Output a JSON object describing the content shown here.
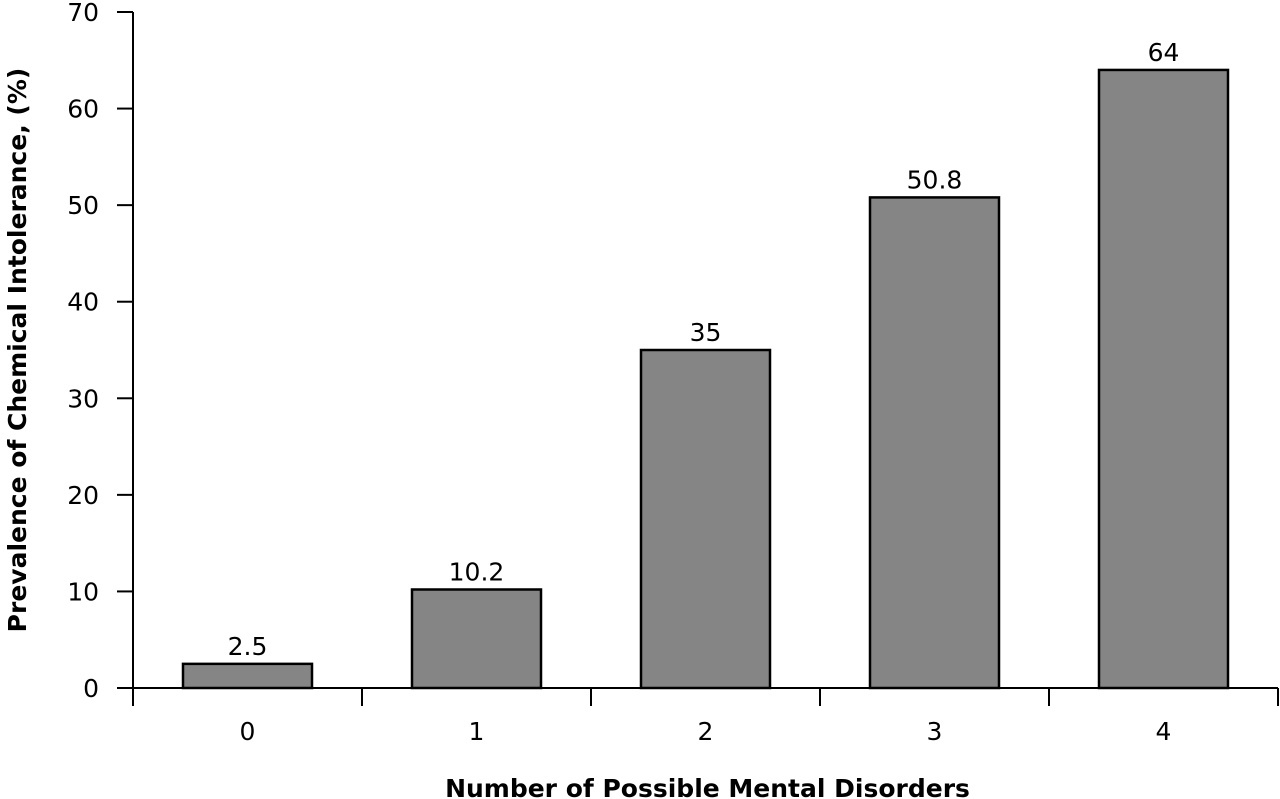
{
  "chart_data": {
    "type": "bar",
    "categories": [
      "0",
      "1",
      "2",
      "3",
      "4"
    ],
    "values": [
      2.5,
      10.2,
      35,
      50.8,
      64
    ],
    "data_labels": [
      "2.5",
      "10.2",
      "35",
      "50.8",
      "64"
    ],
    "title": "",
    "xlabel": "Number of Possible Mental Disorders",
    "ylabel": "Prevalence of Chemical Intolerance, (%)",
    "ylim": [
      0,
      70
    ],
    "yticks": [
      0,
      10,
      20,
      30,
      40,
      50,
      60,
      70
    ],
    "ytick_labels": [
      "0",
      "10",
      "20",
      "30",
      "40",
      "50",
      "60",
      "70"
    ],
    "grid": false,
    "legend": "none",
    "bar_color": "#858585",
    "edge_color": "#000000"
  }
}
